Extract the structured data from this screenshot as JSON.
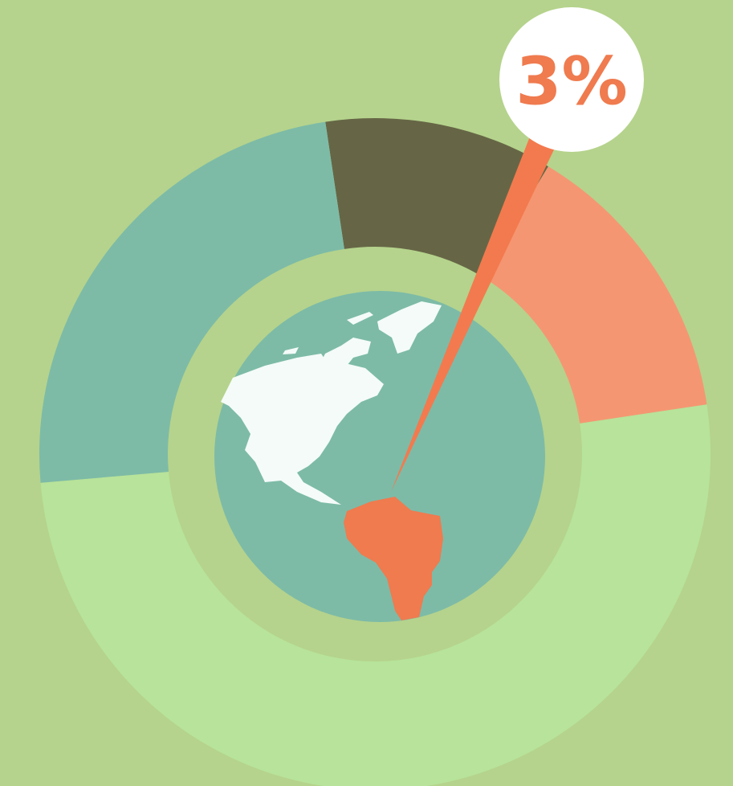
{
  "chart_data": {
    "type": "donut",
    "annotation": "3%",
    "values": [
      11,
      14,
      51,
      24
    ],
    "colors": [
      "#666646",
      "#f59672",
      "#b7e39a",
      "#7dbba7"
    ],
    "start_angle": -8.5
  }
}
